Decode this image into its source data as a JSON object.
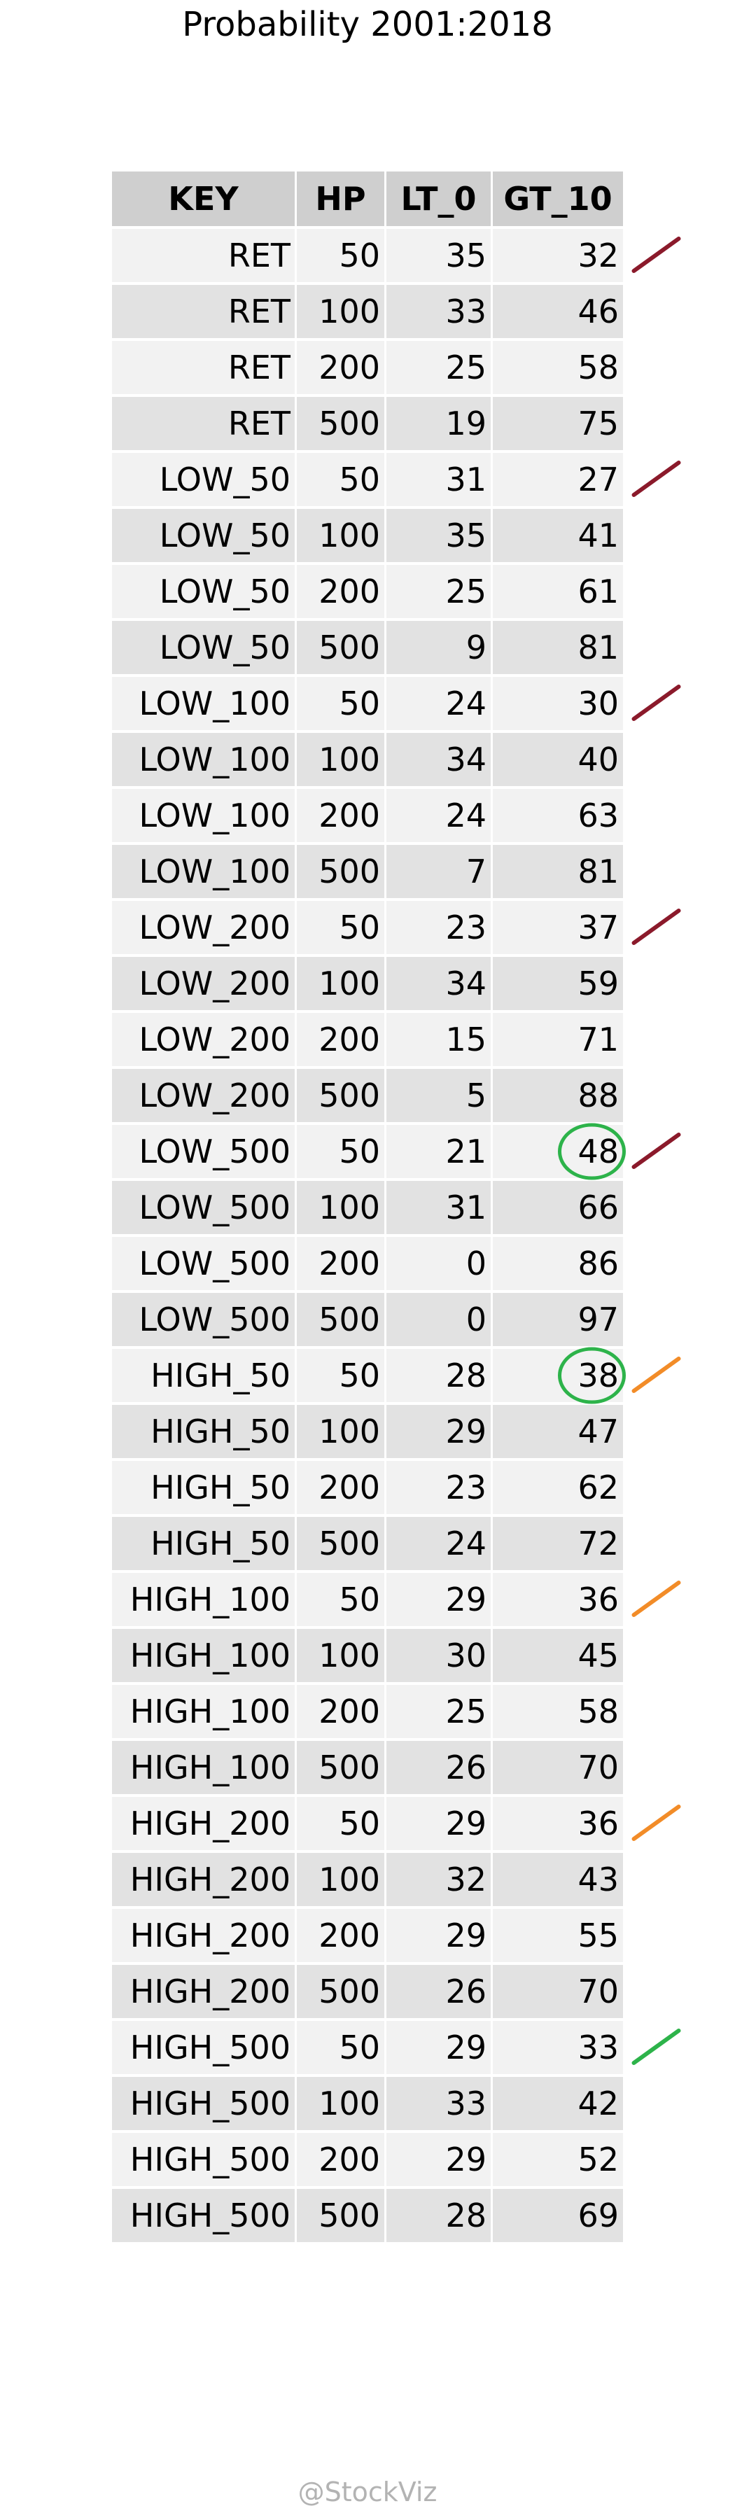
{
  "title": "Probability 2001:2018",
  "footer": "@StockViz",
  "colors": {
    "header_bg": "#cfcfcf",
    "row_light": "#f2f2f2",
    "row_dark": "#e2e2e2",
    "mark_maroon": "#8b1a2b",
    "mark_orange": "#f28c28",
    "mark_green": "#2db34a"
  },
  "chart_data": {
    "type": "table",
    "title": "Probability 2001:2018",
    "columns": [
      "KEY",
      "HP",
      "LT_0",
      "GT_10"
    ],
    "rows": [
      [
        "RET",
        50,
        35,
        32
      ],
      [
        "RET",
        100,
        33,
        46
      ],
      [
        "RET",
        200,
        25,
        58
      ],
      [
        "RET",
        500,
        19,
        75
      ],
      [
        "LOW_50",
        50,
        31,
        27
      ],
      [
        "LOW_50",
        100,
        35,
        41
      ],
      [
        "LOW_50",
        200,
        25,
        61
      ],
      [
        "LOW_50",
        500,
        9,
        81
      ],
      [
        "LOW_100",
        50,
        24,
        30
      ],
      [
        "LOW_100",
        100,
        34,
        40
      ],
      [
        "LOW_100",
        200,
        24,
        63
      ],
      [
        "LOW_100",
        500,
        7,
        81
      ],
      [
        "LOW_200",
        50,
        23,
        37
      ],
      [
        "LOW_200",
        100,
        34,
        59
      ],
      [
        "LOW_200",
        200,
        15,
        71
      ],
      [
        "LOW_200",
        500,
        5,
        88
      ],
      [
        "LOW_500",
        50,
        21,
        48
      ],
      [
        "LOW_500",
        100,
        31,
        66
      ],
      [
        "LOW_500",
        200,
        0,
        86
      ],
      [
        "LOW_500",
        500,
        0,
        97
      ],
      [
        "HIGH_50",
        50,
        28,
        38
      ],
      [
        "HIGH_50",
        100,
        29,
        47
      ],
      [
        "HIGH_50",
        200,
        23,
        62
      ],
      [
        "HIGH_50",
        500,
        24,
        72
      ],
      [
        "HIGH_100",
        50,
        29,
        36
      ],
      [
        "HIGH_100",
        100,
        30,
        45
      ],
      [
        "HIGH_100",
        200,
        25,
        58
      ],
      [
        "HIGH_100",
        500,
        26,
        70
      ],
      [
        "HIGH_200",
        50,
        29,
        36
      ],
      [
        "HIGH_200",
        100,
        32,
        43
      ],
      [
        "HIGH_200",
        200,
        29,
        55
      ],
      [
        "HIGH_200",
        500,
        26,
        70
      ],
      [
        "HIGH_500",
        50,
        29,
        33
      ],
      [
        "HIGH_500",
        100,
        33,
        42
      ],
      [
        "HIGH_500",
        200,
        29,
        52
      ],
      [
        "HIGH_500",
        500,
        28,
        69
      ]
    ],
    "annotations": {
      "slash_marks": [
        {
          "row": 0,
          "color": "maroon"
        },
        {
          "row": 4,
          "color": "maroon"
        },
        {
          "row": 8,
          "color": "maroon"
        },
        {
          "row": 12,
          "color": "maroon"
        },
        {
          "row": 16,
          "color": "maroon"
        },
        {
          "row": 20,
          "color": "orange"
        },
        {
          "row": 24,
          "color": "orange"
        },
        {
          "row": 28,
          "color": "orange"
        },
        {
          "row": 32,
          "color": "green"
        }
      ],
      "circled_cells": [
        {
          "row": 16,
          "column": "GT_10",
          "color": "green"
        },
        {
          "row": 20,
          "column": "GT_10",
          "color": "green"
        }
      ]
    }
  }
}
